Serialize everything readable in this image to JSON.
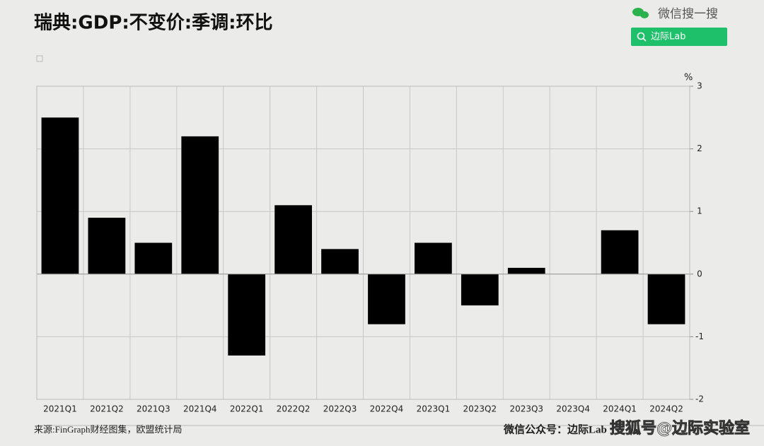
{
  "header": {
    "brand": "微信搜一搜",
    "search_button": "边际Lab"
  },
  "chart_data": {
    "type": "bar",
    "title": "瑞典:GDP:不变价:季调:环比",
    "unit": "%",
    "categories": [
      "2021Q1",
      "2021Q2",
      "2021Q3",
      "2021Q4",
      "2022Q1",
      "2022Q2",
      "2022Q3",
      "2022Q4",
      "2023Q1",
      "2023Q2",
      "2023Q3",
      "2023Q4",
      "2024Q1",
      "2024Q2"
    ],
    "values": [
      2.5,
      0.9,
      0.5,
      2.2,
      -1.3,
      1.1,
      0.4,
      -0.8,
      0.5,
      -0.5,
      0.1,
      0,
      0.7,
      -0.8
    ],
    "color": "#000000",
    "ylim": [
      -2,
      3
    ],
    "yticks": [
      3,
      2,
      1,
      0,
      -1,
      -2
    ],
    "grid": true
  },
  "footer": {
    "source": "来源:FinGraph财经图集，欧盟统计局",
    "account": "微信公众号：边际Lab",
    "watermark": "搜狐号@边际实验室"
  }
}
